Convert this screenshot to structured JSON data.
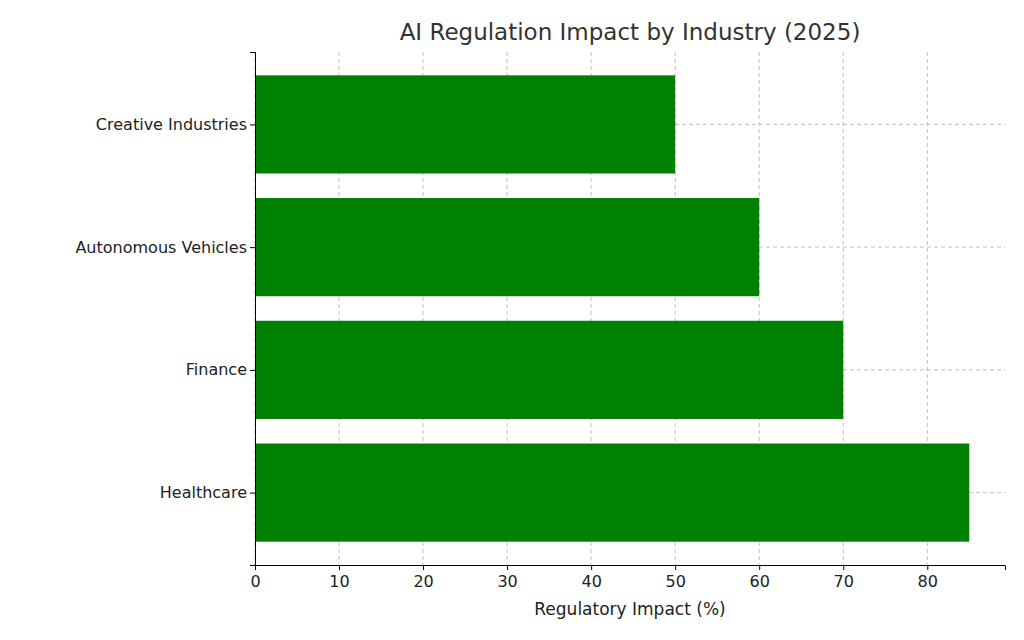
{
  "chart_data": {
    "type": "bar",
    "orientation": "horizontal",
    "title": "AI Regulation Impact by Industry (2025)",
    "x_label": "Regulatory Impact (%)",
    "categories": [
      "Healthcare",
      "Finance",
      "Autonomous Vehicles",
      "Creative Industries"
    ],
    "values": [
      85,
      70,
      60,
      50
    ],
    "color": "#008000",
    "xlim": [
      0,
      89.25
    ],
    "xticks": [
      0,
      10,
      20,
      30,
      40,
      50,
      60,
      70,
      80
    ],
    "grid": true
  }
}
